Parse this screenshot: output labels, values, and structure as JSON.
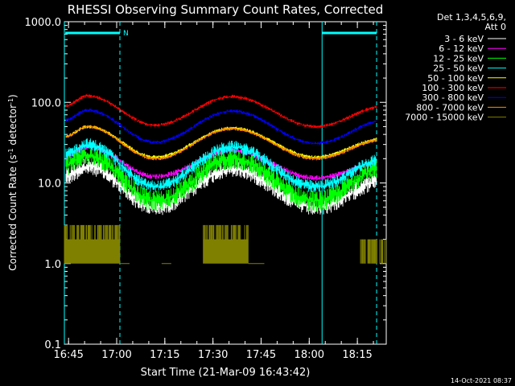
{
  "chart_data": {
    "type": "line",
    "title": "RHESSI Observing Summary Count Rates, Corrected",
    "xlabel": "Start Time (21-Mar-09 16:43:42)",
    "ylabel_main": "Corrected Count Rate (s",
    "ylabel_sup1": "-1",
    "ylabel_mid": " detector",
    "ylabel_sup2": "-1",
    "ylabel_end": ")",
    "y_scale": "log",
    "ylim": [
      0.1,
      1000
    ],
    "xlim": [
      "16:43:42",
      "18:24:00"
    ],
    "x_ticks": [
      "16:45",
      "17:00",
      "17:15",
      "17:30",
      "17:45",
      "18:00",
      "18:15"
    ],
    "y_ticks": [
      "1000.0",
      "100.0",
      "10.0",
      "1.0",
      "0.1"
    ],
    "footer_date": "14-Oct-2021 08:37",
    "legend_header": [
      "Det 1,3,4,5,6,9,",
      "Att 0"
    ],
    "flags": [
      {
        "label": "N",
        "start": "16:44",
        "end": "17:01",
        "color": "#00ffff"
      },
      {
        "label": "",
        "start": "18:04",
        "end": "18:21",
        "color": "#00ffff"
      }
    ],
    "vlines_solid": [
      "16:43:42",
      "18:04"
    ],
    "vlines_dashed": [
      "17:01",
      "18:21"
    ],
    "series": [
      {
        "name": "3 - 6 keV",
        "color": "#ffffff",
        "peak1": 16,
        "trough1": 5,
        "peak2": 15,
        "trough2": 5,
        "end": 11,
        "noise": 0.25
      },
      {
        "name": "6 - 12 keV",
        "color": "#ff00ff",
        "peak1": 28,
        "trough1": 12,
        "peak2": 25,
        "trough2": 11.5,
        "end": 18,
        "noise": 0.08
      },
      {
        "name": "12 - 25 keV",
        "color": "#00ff00",
        "peak1": 22,
        "trough1": 6,
        "peak2": 20,
        "trough2": 6,
        "end": 16,
        "noise": 0.3
      },
      {
        "name": "25 - 50 keV",
        "color": "#00ffff",
        "peak1": 30,
        "trough1": 9,
        "peak2": 28,
        "trough2": 9,
        "end": 20,
        "noise": 0.18
      },
      {
        "name": "50 - 100 keV",
        "color": "#ffff00",
        "peak1": 50,
        "trough1": 21,
        "peak2": 48,
        "trough2": 21,
        "end": 36,
        "noise": 0.05
      },
      {
        "name": "100 - 300 keV",
        "color": "#ff0000",
        "peak1": 120,
        "trough1": 52,
        "peak2": 118,
        "trough2": 50,
        "end": 90,
        "noise": 0.05
      },
      {
        "name": "300 - 800 keV",
        "color": "#0000ff",
        "peak1": 80,
        "trough1": 32,
        "peak2": 78,
        "trough2": 31,
        "end": 60,
        "noise": 0.05
      },
      {
        "name": "800 - 7000 keV",
        "color": "#ff8c00",
        "peak1": 50,
        "trough1": 20,
        "peak2": 47,
        "trough2": 20,
        "end": 35,
        "noise": 0.05
      },
      {
        "name": "7000 - 15000 keV",
        "color": "#808000",
        "type": "step",
        "noise": 0
      }
    ]
  }
}
